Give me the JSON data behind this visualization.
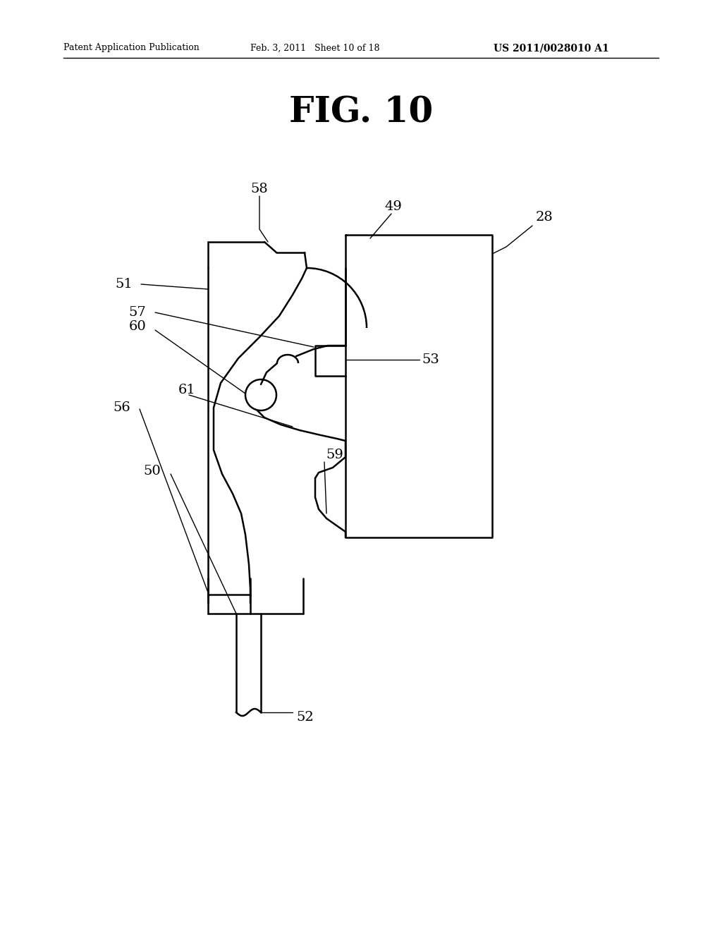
{
  "title": "FIG. 10",
  "header_left": "Patent Application Publication",
  "header_center": "Feb. 3, 2011   Sheet 10 of 18",
  "header_right": "US 2011/0028010 A1",
  "background_color": "#ffffff"
}
